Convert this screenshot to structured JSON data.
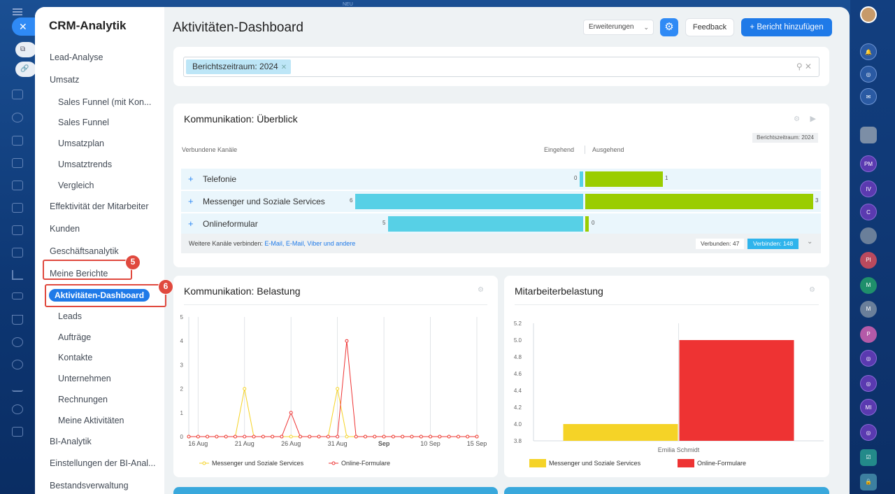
{
  "top_label": "NEU",
  "sidebar": {
    "title": "CRM-Analytik",
    "items": [
      {
        "label": "Lead-Analyse",
        "sub": false
      },
      {
        "label": "Umsatz",
        "sub": false
      },
      {
        "label": "Sales Funnel (mit Kon...",
        "sub": true
      },
      {
        "label": "Sales Funnel",
        "sub": true
      },
      {
        "label": "Umsatzplan",
        "sub": true
      },
      {
        "label": "Umsatztrends",
        "sub": true
      },
      {
        "label": "Vergleich",
        "sub": true
      },
      {
        "label": "Effektivität der Mitarbeiter",
        "sub": false
      },
      {
        "label": "Kunden",
        "sub": false
      },
      {
        "label": "Geschäftsanalytik",
        "sub": false
      },
      {
        "label": "Meine Berichte",
        "sub": false
      },
      {
        "label": "Aktivitäten-Dashboard",
        "sub": true,
        "active": true
      },
      {
        "label": "Leads",
        "sub": true
      },
      {
        "label": "Aufträge",
        "sub": true
      },
      {
        "label": "Kontakte",
        "sub": true
      },
      {
        "label": "Unternehmen",
        "sub": true
      },
      {
        "label": "Rechnungen",
        "sub": true
      },
      {
        "label": "Meine Aktivitäten",
        "sub": true
      },
      {
        "label": "BI-Analytik",
        "sub": false
      },
      {
        "label": "Einstellungen der BI-Anal...",
        "sub": false
      },
      {
        "label": "Bestandsverwaltung",
        "sub": false
      }
    ],
    "annotations": {
      "my_reports_badge": "5",
      "dashboard_badge": "6"
    }
  },
  "header": {
    "title": "Aktivitäten-Dashboard",
    "extensions_label": "Erweiterungen",
    "feedback_label": "Feedback",
    "add_report_label": "Bericht hinzufügen"
  },
  "filter": {
    "chip_label": "Berichtszeitraum: 2024"
  },
  "overview": {
    "title": "Kommunikation: Überblick",
    "period_badge": "Berichtszeitraum: 2024",
    "col_channels": "Verbundene Kanäle",
    "col_incoming": "Eingehend",
    "col_outgoing": "Ausgehend",
    "rows": [
      {
        "label": "Telefonie",
        "incoming": 0,
        "outgoing": 1
      },
      {
        "label": "Messenger und Soziale Services",
        "incoming": 6,
        "outgoing": 3
      },
      {
        "label": "Onlineformular",
        "incoming": 5,
        "outgoing": 0
      }
    ],
    "footer_text": "Weitere Kanäle verbinden: ",
    "footer_links": "E-Mail, E-Mail, Viber und andere",
    "connected_label": "Verbunden: 47",
    "connect_label": "Verbinden: 148"
  },
  "colors": {
    "incoming": "#57d0e6",
    "outgoing": "#9acd00",
    "messenger": "#f5d327",
    "online": "#ee3333",
    "accent": "#1f7ae8"
  },
  "chart_data": [
    {
      "type": "line",
      "title": "Kommunikation: Belastung",
      "x_ticks": [
        "16 Aug",
        "21 Aug",
        "26 Aug",
        "31 Aug",
        "Sep",
        "10 Sep",
        "15 Sep"
      ],
      "x_range": [
        "2024-08-15",
        "2024-09-15"
      ],
      "ylim": [
        0,
        5
      ],
      "y_ticks": [
        0,
        1,
        2,
        3,
        4,
        5
      ],
      "series": [
        {
          "name": "Messenger und Soziale Services",
          "color": "#f5d327",
          "x": [
            "2024-08-15",
            "2024-08-16",
            "2024-08-17",
            "2024-08-18",
            "2024-08-19",
            "2024-08-20",
            "2024-08-21",
            "2024-08-22",
            "2024-08-23",
            "2024-08-24",
            "2024-08-25",
            "2024-08-26",
            "2024-08-27",
            "2024-08-28",
            "2024-08-29",
            "2024-08-30",
            "2024-08-31",
            "2024-09-01",
            "2024-09-02",
            "2024-09-03",
            "2024-09-04",
            "2024-09-05",
            "2024-09-06",
            "2024-09-07",
            "2024-09-08",
            "2024-09-09",
            "2024-09-10",
            "2024-09-11",
            "2024-09-12",
            "2024-09-13",
            "2024-09-14",
            "2024-09-15"
          ],
          "y": [
            0,
            0,
            0,
            0,
            0,
            0,
            2,
            0,
            0,
            0,
            0,
            0,
            0,
            0,
            0,
            0,
            2,
            0,
            0,
            0,
            0,
            0,
            0,
            0,
            0,
            0,
            0,
            0,
            0,
            0,
            0,
            0
          ]
        },
        {
          "name": "Online-Formulare",
          "color": "#ee3333",
          "x": [
            "2024-08-15",
            "2024-08-16",
            "2024-08-17",
            "2024-08-18",
            "2024-08-19",
            "2024-08-20",
            "2024-08-21",
            "2024-08-22",
            "2024-08-23",
            "2024-08-24",
            "2024-08-25",
            "2024-08-26",
            "2024-08-27",
            "2024-08-28",
            "2024-08-29",
            "2024-08-30",
            "2024-08-31",
            "2024-09-01",
            "2024-09-02",
            "2024-09-03",
            "2024-09-04",
            "2024-09-05",
            "2024-09-06",
            "2024-09-07",
            "2024-09-08",
            "2024-09-09",
            "2024-09-10",
            "2024-09-11",
            "2024-09-12",
            "2024-09-13",
            "2024-09-14",
            "2024-09-15"
          ],
          "y": [
            0,
            0,
            0,
            0,
            0,
            0,
            0,
            0,
            0,
            0,
            0,
            1,
            0,
            0,
            0,
            0,
            0,
            4,
            0,
            0,
            0,
            0,
            0,
            0,
            0,
            0,
            0,
            0,
            0,
            0,
            0,
            0
          ]
        }
      ]
    },
    {
      "type": "bar",
      "title": "Mitarbeiterbelastung",
      "categories": [
        "Emilia Schmidt"
      ],
      "ylim": [
        3.8,
        5.2
      ],
      "y_ticks": [
        "3.8",
        "4.0",
        "4.2",
        "4.4",
        "4.6",
        "4.8",
        "5.0",
        "5.2"
      ],
      "series": [
        {
          "name": "Messenger und Soziale Services",
          "color": "#f5d327",
          "values": [
            4
          ]
        },
        {
          "name": "Online-Formulare",
          "color": "#ee3333",
          "values": [
            5
          ]
        }
      ]
    }
  ],
  "right_rail": {
    "initials": [
      "PM",
      "IV",
      "C",
      "PI",
      "M",
      "M",
      "P",
      "MI"
    ]
  }
}
